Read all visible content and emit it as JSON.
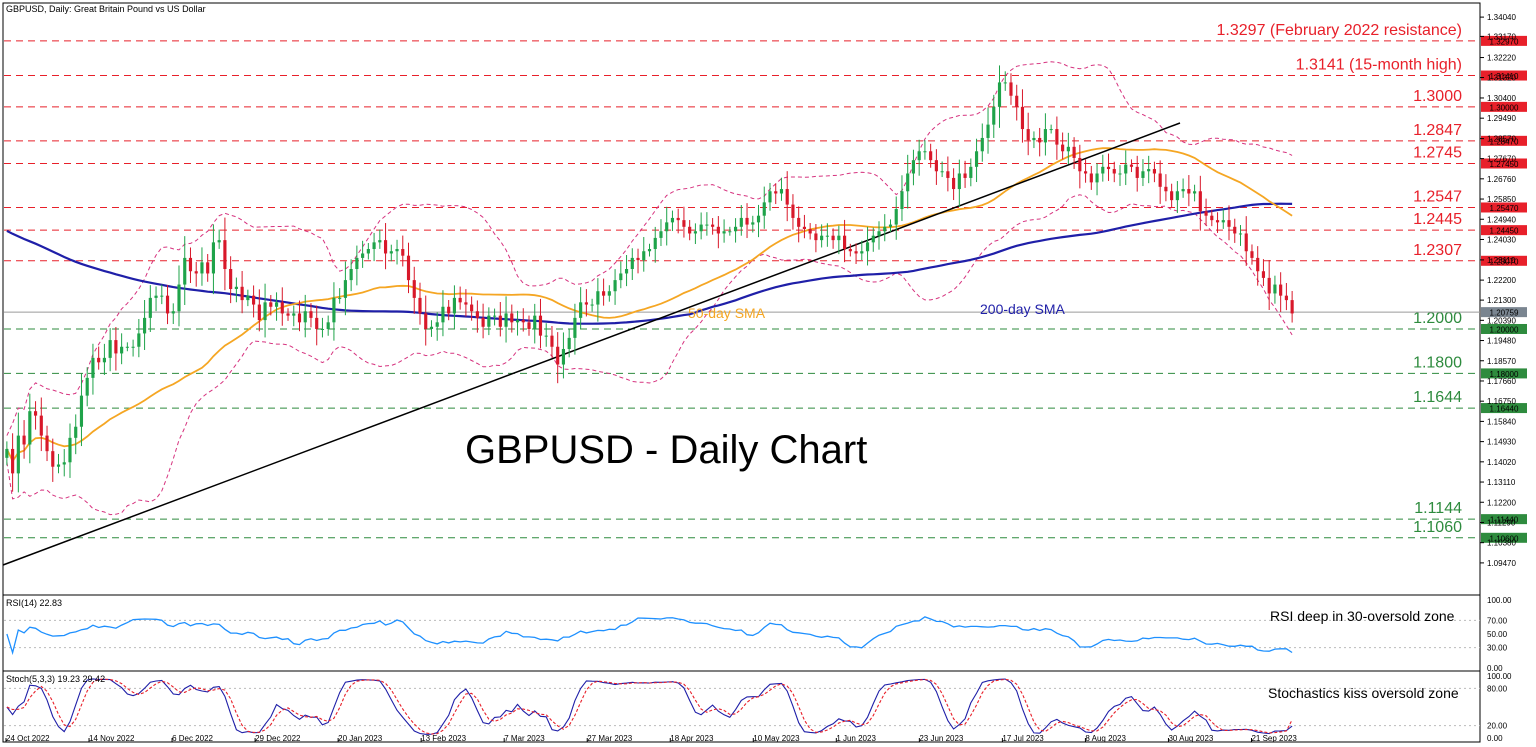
{
  "chart_data": [
    {
      "type": "candlestick",
      "header": "GBPUSD, Daily:  Great Britain Pound vs US Dollar",
      "title": "GBPUSD - Daily Chart",
      "ylim": [
        1.0816,
        1.3445
      ],
      "y_ticks": [
        "1.34040",
        "1.33170",
        "1.32220",
        "1.31320",
        "1.30400",
        "1.29490",
        "1.28570",
        "1.27670",
        "1.26760",
        "1.25850",
        "1.24940",
        "1.24030",
        "1.23110",
        "1.22200",
        "1.21300",
        "1.20390",
        "1.19480",
        "1.18570",
        "1.17660",
        "1.16750",
        "1.15840",
        "1.14930",
        "1.14020",
        "1.13110",
        "1.12200",
        "1.11290",
        "1.10380",
        "1.09470"
      ],
      "x_ticks": [
        "24 Oct 2022",
        "14 Nov 2022",
        "6 Dec 2022",
        "29 Dec 2022",
        "20 Jan 2023",
        "13 Feb 2023",
        "7 Mar 2023",
        "27 Mar 2023",
        "18 Apr 2023",
        "10 May 2023",
        "1 Jun 2023",
        "23 Jun 2023",
        "17 Jul 2023",
        "8 Aug 2023",
        "30 Aug 2023",
        "21 Sep 2023"
      ],
      "current_price": "1.20759",
      "levels": [
        {
          "value": 1.3297,
          "label": "1.3297 (February 2022 resistance)",
          "tag": "1.32970",
          "color": "#e8202a"
        },
        {
          "value": 1.3141,
          "label": "1.3141 (15-month high)",
          "tag": "1.31410",
          "color": "#e8202a"
        },
        {
          "value": 1.3,
          "label": "1.3000",
          "tag": "1.30000",
          "color": "#e8202a"
        },
        {
          "value": 1.2847,
          "label": "1.2847",
          "tag": "1.28470",
          "color": "#e8202a"
        },
        {
          "value": 1.2745,
          "label": "1.2745",
          "tag": "1.27450",
          "color": "#e8202a"
        },
        {
          "value": 1.2547,
          "label": "1.2547",
          "tag": "1.25470",
          "color": "#e8202a"
        },
        {
          "value": 1.2445,
          "label": "1.2445",
          "tag": "1.24450",
          "color": "#e8202a"
        },
        {
          "value": 1.2307,
          "label": "1.2307",
          "tag": "1.23070",
          "color": "#e8202a"
        },
        {
          "value": 1.2,
          "label": "1.2000",
          "tag": "1.20000",
          "color": "#2e8b3e"
        },
        {
          "value": 1.18,
          "label": "1.1800",
          "tag": "1.18000",
          "color": "#2e8b3e"
        },
        {
          "value": 1.1644,
          "label": "1.1644",
          "tag": "1.16440",
          "color": "#2e8b3e"
        },
        {
          "value": 1.1144,
          "label": "1.1144",
          "tag": "1.11440",
          "color": "#2e8b3e"
        },
        {
          "value": 1.106,
          "label": "1.1060",
          "tag": "1.10600",
          "color": "#2e8b3e"
        }
      ],
      "annotations": {
        "sma50": "50-day SMA",
        "sma200": "200-day SMA"
      },
      "colors": {
        "bull": "#1fa34a",
        "bear": "#d8182a",
        "sma50": "#f5a623",
        "sma200": "#1f1fa8",
        "bands": "#d6337f",
        "trendline": "#000000"
      },
      "closes": [
        1.146,
        1.135,
        1.152,
        1.148,
        1.163,
        1.161,
        1.152,
        1.145,
        1.138,
        1.139,
        1.14,
        1.151,
        1.156,
        1.17,
        1.178,
        1.187,
        1.185,
        1.187,
        1.195,
        1.189,
        1.192,
        1.192,
        1.192,
        1.198,
        1.205,
        1.214,
        1.215,
        1.215,
        1.207,
        1.208,
        1.22,
        1.232,
        1.226,
        1.225,
        1.23,
        1.225,
        1.239,
        1.24,
        1.227,
        1.218,
        1.219,
        1.213,
        1.215,
        1.211,
        1.204,
        1.212,
        1.21,
        1.212,
        1.207,
        1.206,
        1.207,
        1.203,
        1.208,
        1.205,
        1.2,
        1.2,
        1.203,
        1.214,
        1.214,
        1.222,
        1.227,
        1.232,
        1.234,
        1.236,
        1.239,
        1.24,
        1.234,
        1.235,
        1.236,
        1.233,
        1.222,
        1.214,
        1.207,
        1.2,
        1.201,
        1.203,
        1.21,
        1.207,
        1.214,
        1.212,
        1.211,
        1.208,
        1.205,
        1.201,
        1.206,
        1.206,
        1.201,
        1.207,
        1.203,
        1.204,
        1.203,
        1.2,
        1.206,
        1.197,
        1.197,
        1.192,
        1.184,
        1.191,
        1.196,
        1.205,
        1.212,
        1.211,
        1.211,
        1.217,
        1.215,
        1.217,
        1.222,
        1.225,
        1.227,
        1.232,
        1.231,
        1.235,
        1.236,
        1.241,
        1.244,
        1.248,
        1.25,
        1.249,
        1.246,
        1.243,
        1.244,
        1.247,
        1.247,
        1.246,
        1.243,
        1.244,
        1.244,
        1.246,
        1.25,
        1.247,
        1.248,
        1.251,
        1.257,
        1.262,
        1.261,
        1.263,
        1.256,
        1.25,
        1.246,
        1.245,
        1.243,
        1.24,
        1.242,
        1.242,
        1.24,
        1.242,
        1.236,
        1.235,
        1.234,
        1.235,
        1.239,
        1.242,
        1.244,
        1.246,
        1.247,
        1.254,
        1.262,
        1.27,
        1.276,
        1.28,
        1.28,
        1.276,
        1.271,
        1.271,
        1.268,
        1.263,
        1.27,
        1.268,
        1.273,
        1.28,
        1.286,
        1.292,
        1.3,
        1.311,
        1.311,
        1.305,
        1.3,
        1.29,
        1.285,
        1.286,
        1.284,
        1.29,
        1.29,
        1.283,
        1.28,
        1.282,
        1.277,
        1.271,
        1.27,
        1.266,
        1.27,
        1.273,
        1.272,
        1.27,
        1.27,
        1.274,
        1.273,
        1.268,
        1.271,
        1.272,
        1.27,
        1.264,
        1.262,
        1.258,
        1.262,
        1.263,
        1.261,
        1.262,
        1.253,
        1.251,
        1.249,
        1.248,
        1.249,
        1.246,
        1.243,
        1.243,
        1.235,
        1.232,
        1.226,
        1.223,
        1.216,
        1.22,
        1.215,
        1.213,
        1.207
      ]
    },
    {
      "type": "line",
      "name": "RSI(14) 22.83",
      "note": "RSI deep in 30-oversold zone",
      "ylim": [
        0,
        100
      ],
      "y_ticks": [
        "100.00",
        "70.00",
        "50.00",
        "30.00",
        "0.00"
      ],
      "color": "#1e90ff",
      "last_value": 22.83
    },
    {
      "type": "line",
      "name": "Stoch(5,3,3) 19.23 29.42",
      "note": "Stochastics kiss oversold zone",
      "ylim": [
        0,
        100
      ],
      "y_ticks": [
        "100.00",
        "80.00",
        "20.00",
        "0.00"
      ],
      "series_colors": [
        "#1f1fa8",
        "#e8202a"
      ],
      "last_values": [
        19.23,
        29.42
      ]
    }
  ]
}
